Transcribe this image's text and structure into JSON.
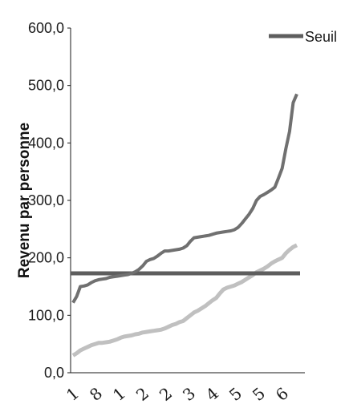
{
  "chart_data": {
    "type": "line",
    "ylabel": "Revenu par personne",
    "ylim": [
      0,
      600
    ],
    "yticks": [
      "0,0",
      "100,0",
      "200,0",
      "300,0",
      "400,0",
      "500,0",
      "600,0"
    ],
    "x_tick_labels": [
      "1",
      "8",
      "1",
      "2",
      "2",
      "3",
      "4",
      "5",
      "5",
      "6"
    ],
    "legend": {
      "position": "top-right",
      "label": "Seuil"
    },
    "colors": {
      "upper": "#707070",
      "lower": "#c0c0c0",
      "seuil": "#5e5e5e"
    },
    "series": [
      {
        "role": "upper",
        "values": [
          122,
          133,
          150,
          151,
          153,
          157,
          160,
          162,
          163,
          164,
          166,
          167,
          168,
          169,
          170,
          171,
          173,
          176,
          180,
          186,
          194,
          197,
          199,
          203,
          208,
          212,
          212,
          213,
          214,
          215,
          217,
          221,
          229,
          235,
          236,
          237,
          238,
          239,
          241,
          243,
          244,
          245,
          246,
          247,
          249,
          253,
          260,
          268,
          276,
          286,
          300,
          307,
          310,
          314,
          318,
          323,
          339,
          356,
          390,
          420,
          470,
          485
        ]
      },
      {
        "role": "lower",
        "values": [
          30,
          34,
          39,
          42,
          45,
          48,
          50,
          52,
          52,
          53,
          54,
          56,
          58,
          61,
          63,
          64,
          65,
          67,
          68,
          70,
          71,
          72,
          73,
          74,
          75,
          77,
          80,
          83,
          85,
          88,
          90,
          95,
          100,
          105,
          108,
          112,
          116,
          121,
          126,
          130,
          138,
          145,
          148,
          150,
          152,
          155,
          158,
          162,
          166,
          170,
          175,
          178,
          181,
          185,
          190,
          194,
          197,
          200,
          208,
          214,
          219,
          222
        ]
      },
      {
        "name": "Seuil",
        "role": "seuil",
        "values": [
          173,
          173
        ]
      }
    ]
  }
}
